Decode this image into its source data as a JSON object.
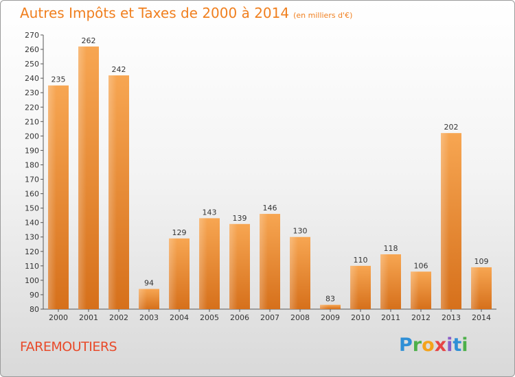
{
  "header": {
    "title": "Autres Impôts et Taxes de 2000 à 2014",
    "subtitle": "(en milliers d'€)"
  },
  "footer": {
    "city": "FAREMOUTIERS",
    "logo": {
      "letters": [
        "P",
        "r",
        "o",
        "x",
        "i",
        "t",
        "i"
      ]
    }
  },
  "colors": {
    "title": "#f07f1e",
    "bar_light": "#f5a04a",
    "bar_dark": "#d9741d",
    "city": "#e84a2a"
  },
  "chart_data": {
    "type": "bar",
    "categories": [
      "2000",
      "2001",
      "2002",
      "2003",
      "2004",
      "2005",
      "2006",
      "2007",
      "2008",
      "2009",
      "2010",
      "2011",
      "2012",
      "2013",
      "2014"
    ],
    "values": [
      235,
      262,
      242,
      94,
      129,
      143,
      139,
      146,
      130,
      83,
      110,
      118,
      106,
      202,
      109
    ],
    "title": "Autres Impôts et Taxes de 2000 à 2014",
    "subtitle": "(en milliers d'€)",
    "xlabel": "",
    "ylabel": "",
    "ylim": [
      80,
      270
    ],
    "ytick_step": 10,
    "grid": false,
    "data_labels": true,
    "legend": "none"
  }
}
